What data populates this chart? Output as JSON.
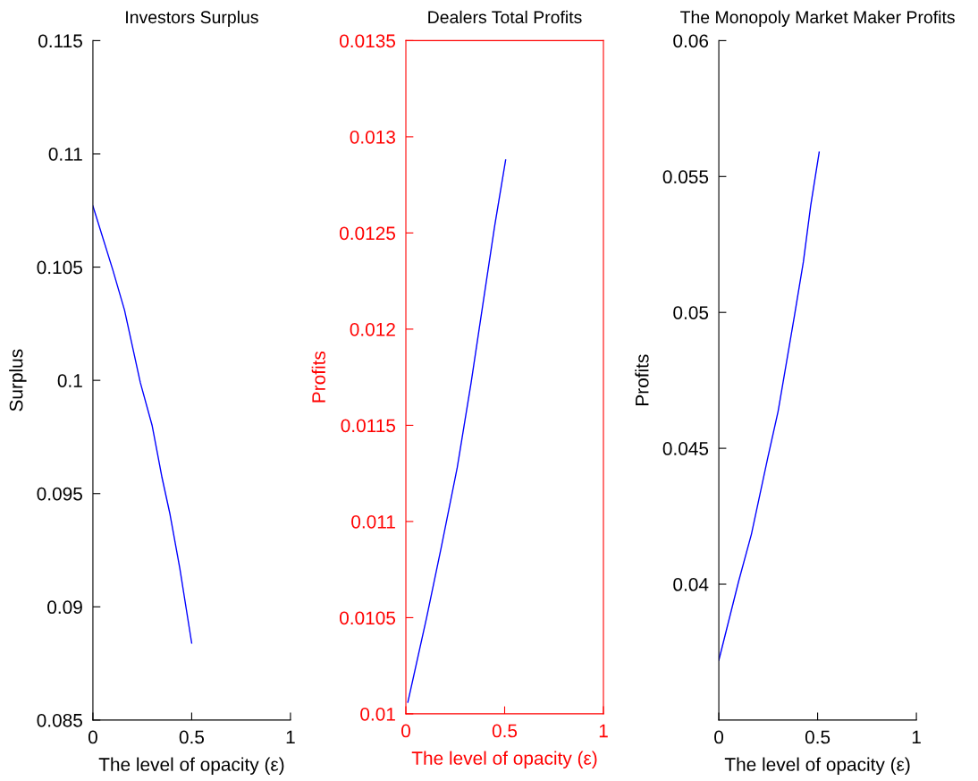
{
  "chart_data": [
    {
      "type": "line",
      "title": "Investors Surplus",
      "xlabel": "The level of opacity (ε)",
      "ylabel": "Surplus",
      "series": [
        {
          "color": "#0000ff",
          "x": [
            0,
            0.1,
            0.16,
            0.24,
            0.3,
            0.35,
            0.39,
            0.44,
            0.5
          ],
          "values": [
            0.1077,
            0.1049,
            0.1031,
            0.0999,
            0.098,
            0.0957,
            0.0941,
            0.0917,
            0.0884
          ]
        }
      ],
      "xlim": [
        0,
        1
      ],
      "xticks": [
        0,
        0.5,
        1
      ],
      "ylim": [
        0.085,
        0.115
      ],
      "yticks": [
        0.085,
        0.09,
        0.095,
        0.1,
        0.105,
        0.11,
        0.115
      ],
      "grid": false,
      "legend": false
    },
    {
      "type": "line",
      "title": "Dealers Total Profits",
      "xlabel": "The level of opacity (ε)",
      "ylabel": "Profits",
      "series": [
        {
          "color": "#0000ff",
          "x": [
            0.01,
            0.105,
            0.18,
            0.26,
            0.33,
            0.39,
            0.45,
            0.505
          ],
          "values": [
            0.01006,
            0.0105,
            0.01087,
            0.01128,
            0.01172,
            0.01213,
            0.01254,
            0.01288
          ]
        }
      ],
      "xlim": [
        0,
        1
      ],
      "xticks": [
        0,
        0.5,
        1
      ],
      "ylim": [
        0.01,
        0.0135
      ],
      "yticks": [
        0.01,
        0.0105,
        0.011,
        0.0115,
        0.012,
        0.0125,
        0.013,
        0.0135
      ],
      "grid": false,
      "legend": false
    },
    {
      "type": "line",
      "title": "The Monopoly Market Maker Profits",
      "xlabel": "The level of opacity (ε)",
      "ylabel": "Profits",
      "series": [
        {
          "color": "#0000ff",
          "x": [
            0,
            0.1,
            0.165,
            0.248,
            0.3,
            0.383,
            0.428,
            0.465,
            0.508
          ],
          "values": [
            0.0372,
            0.0401,
            0.04184,
            0.04466,
            0.04636,
            0.04989,
            0.05186,
            0.05393,
            0.0559
          ]
        }
      ],
      "xlim": [
        0,
        1
      ],
      "xticks": [
        0,
        0.5,
        1
      ],
      "ylim": [
        0.035,
        0.06
      ],
      "yticks": [
        0.04,
        0.045,
        0.05,
        0.055,
        0.06
      ],
      "grid": false,
      "legend": false
    }
  ]
}
